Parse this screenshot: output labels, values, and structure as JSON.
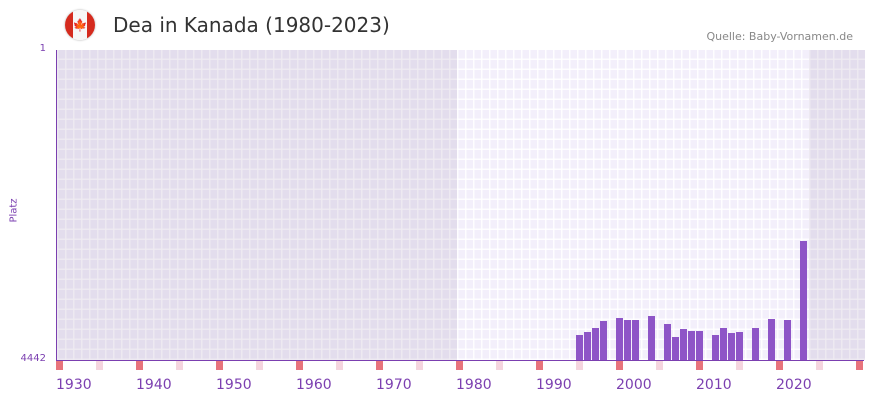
{
  "header": {
    "title": "Dea in Kanada (1980-2023)",
    "source": "Quelle: Baby-Vornamen.de",
    "flag_icon": "maple-leaf"
  },
  "chart_data": {
    "type": "bar",
    "title": "Dea in Kanada (1980-2023)",
    "ylabel": "Platz",
    "xlabel": "",
    "yticks": [
      "1",
      "4442"
    ],
    "ylim": [
      4442,
      1
    ],
    "xlim": [
      1930,
      2030
    ],
    "xticks": [
      "1930",
      "1940",
      "1950",
      "1960",
      "1970",
      "1980",
      "1990",
      "2000",
      "2010",
      "2020"
    ],
    "highlight_range": [
      1980,
      2023
    ],
    "colors": {
      "bar": "#8e55c7",
      "decade_marker": "#e8747c",
      "half_marker": "#f5d5de"
    },
    "x": [
      1995,
      1996,
      1997,
      1998,
      2000,
      2001,
      2002,
      2004,
      2006,
      2007,
      2008,
      2009,
      2010,
      2012,
      2013,
      2014,
      2015,
      2017,
      2019,
      2021,
      2023
    ],
    "values": [
      4084,
      4040,
      3983,
      3883,
      3840,
      3869,
      3869,
      3811,
      3926,
      4113,
      3998,
      4027,
      4027,
      4084,
      3983,
      4055,
      4040,
      3983,
      3854,
      3869,
      2737
    ]
  }
}
